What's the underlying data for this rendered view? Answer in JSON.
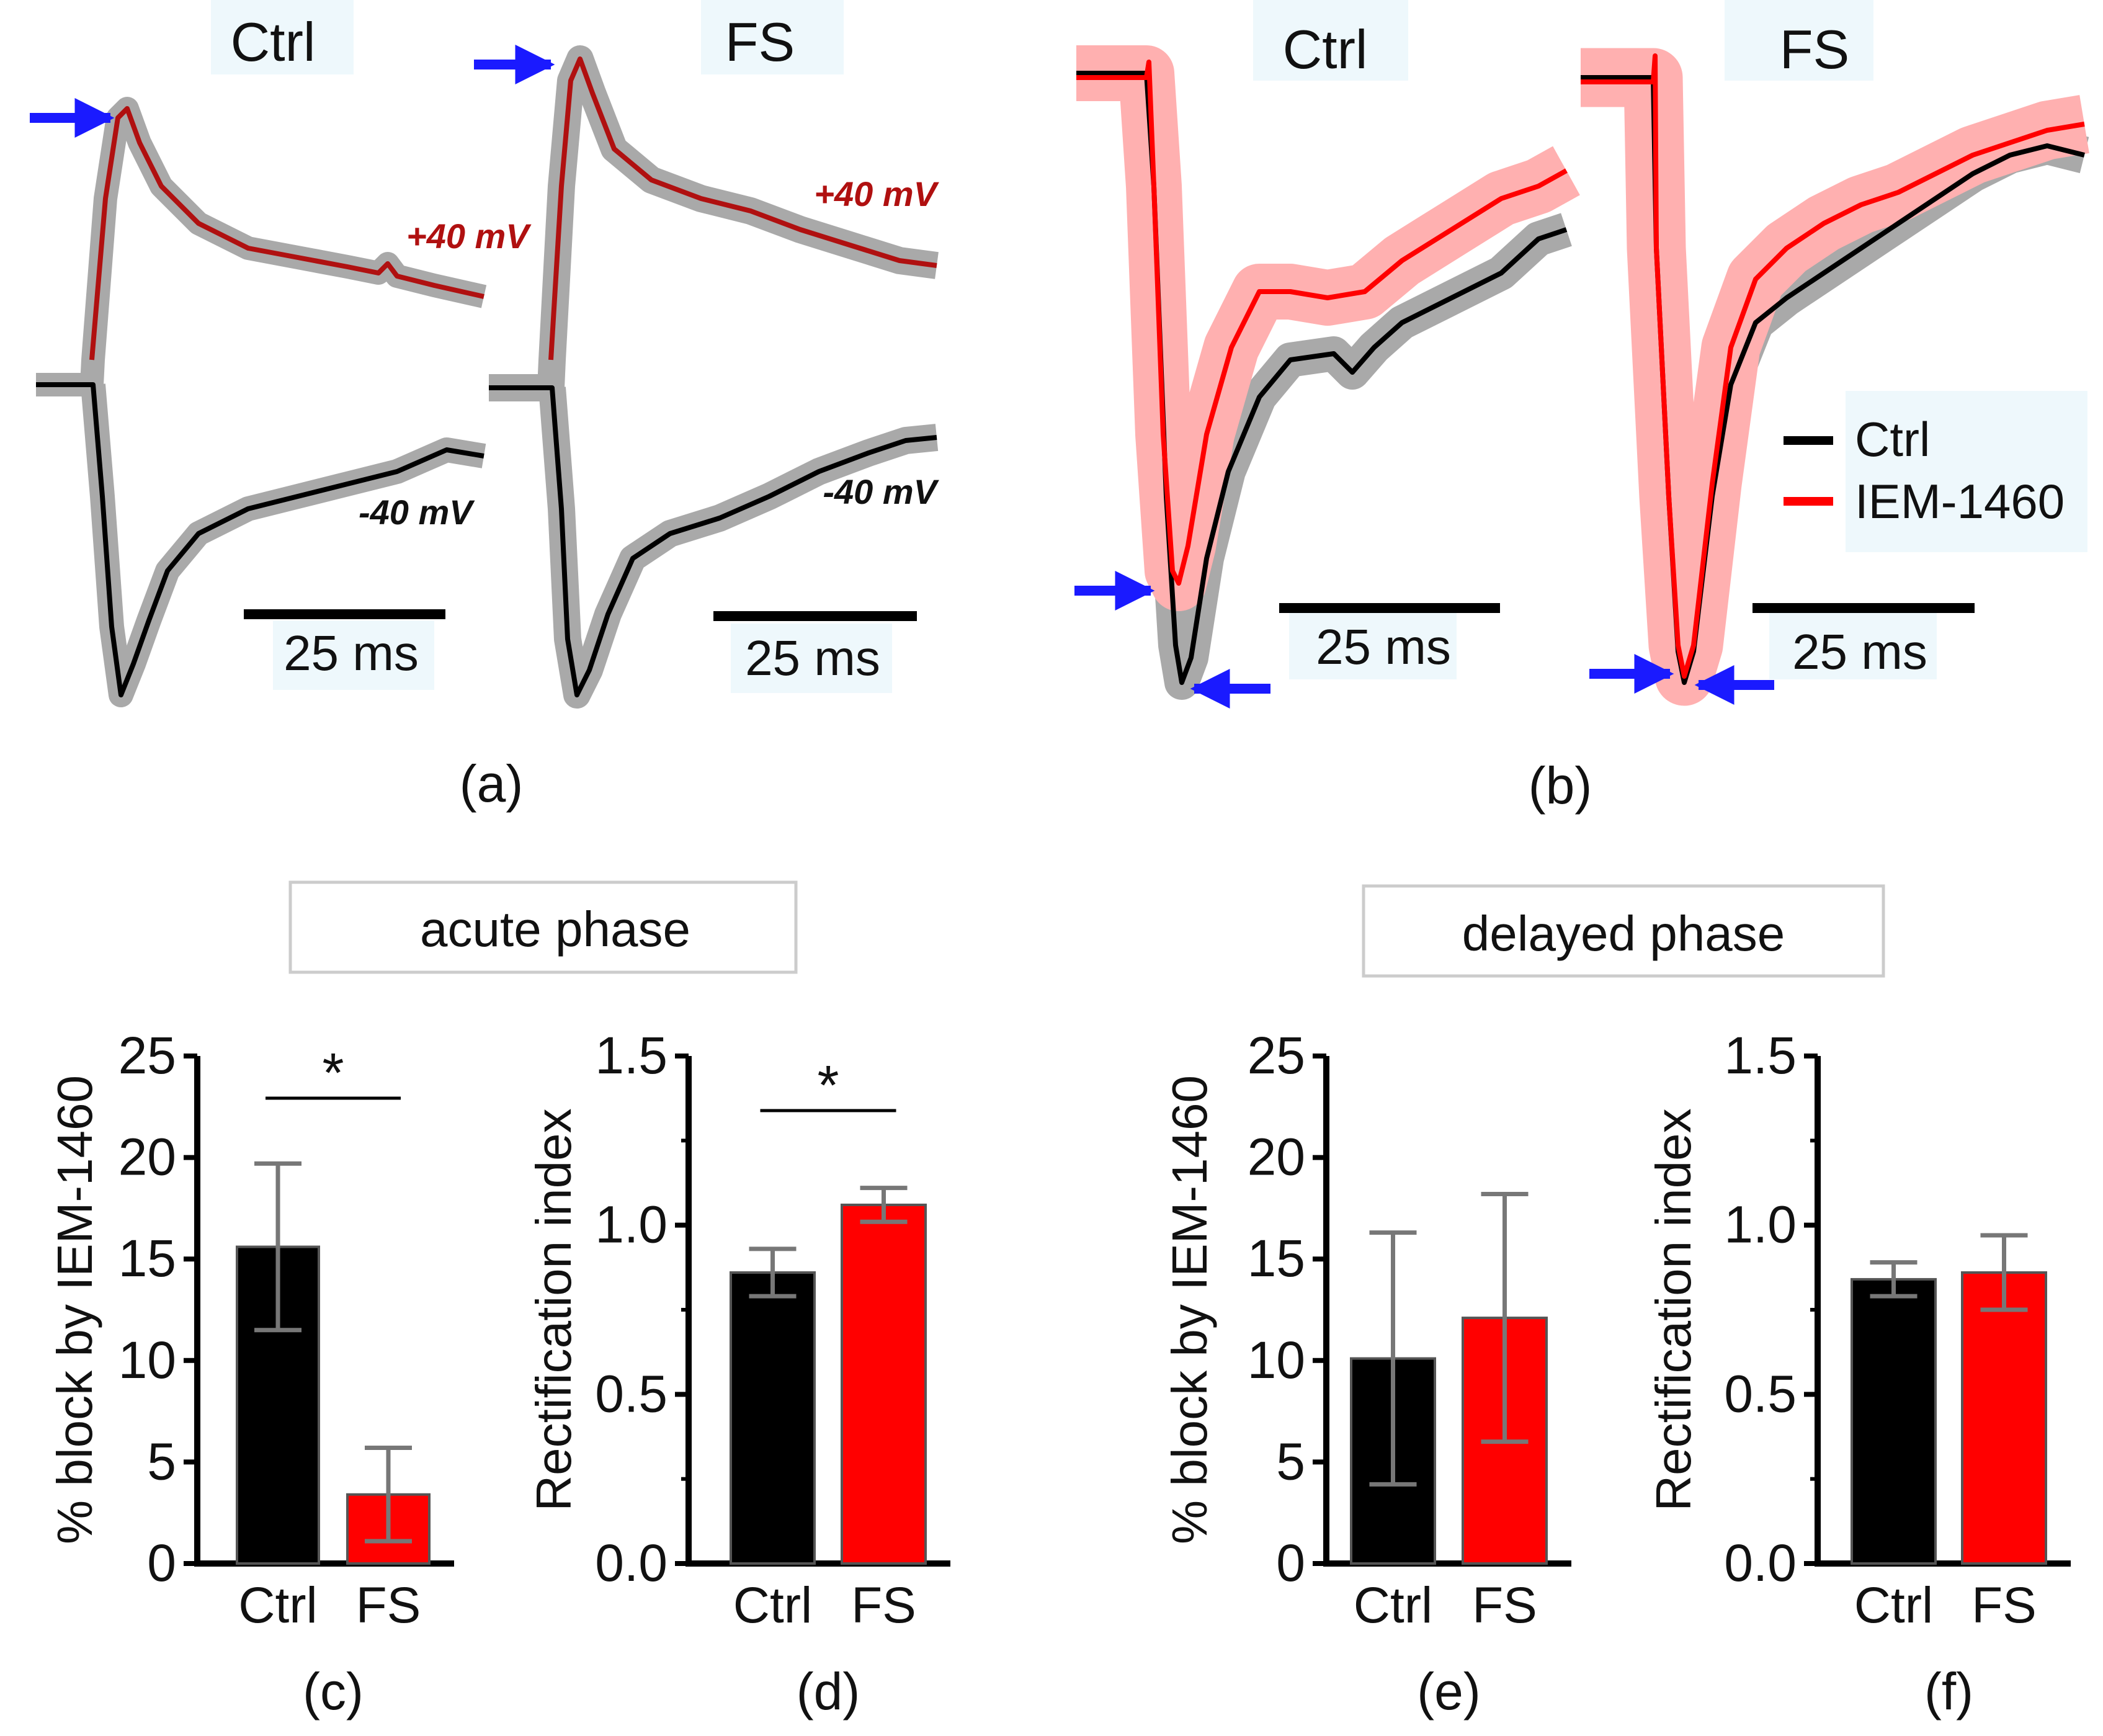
{
  "chart_data": [
    {
      "type": "line",
      "panel": "(a)",
      "titles": [
        "Ctrl",
        "FS"
      ],
      "annotations": [
        "+40 mV",
        "-40 mV"
      ],
      "scalebar": "25 ms",
      "series": [
        {
          "name": "+40 mV",
          "color": "#b01010"
        },
        {
          "name": "-40 mV",
          "color": "#000000"
        }
      ]
    },
    {
      "type": "line",
      "panel": "(b)",
      "titles": [
        "Ctrl",
        "FS"
      ],
      "scalebar": "25 ms",
      "legend": [
        "Ctrl",
        "IEM-1460"
      ],
      "series": [
        {
          "name": "Ctrl",
          "color": "#000000"
        },
        {
          "name": "IEM-1460",
          "color": "#ff0000"
        }
      ]
    },
    {
      "type": "bar",
      "panel": "(c)",
      "phase": "acute phase",
      "categories": [
        "Ctrl",
        "FS"
      ],
      "values": [
        15.6,
        3.4
      ],
      "errors": [
        4.1,
        2.3
      ],
      "ylabel": "% block by IEM-1460",
      "ylim": [
        0,
        25
      ],
      "yticks": [
        "0",
        "5",
        "10",
        "15",
        "20",
        "25"
      ],
      "significance": "*",
      "colors": [
        "#000000",
        "#ff0000"
      ]
    },
    {
      "type": "bar",
      "panel": "(d)",
      "phase": "acute phase",
      "categories": [
        "Ctrl",
        "FS"
      ],
      "values": [
        0.86,
        1.06
      ],
      "errors": [
        0.07,
        0.05
      ],
      "ylabel": "Rectification index",
      "ylim": [
        0,
        1.5
      ],
      "yticks": [
        "0.0",
        "0.5",
        "1.0",
        "1.5"
      ],
      "significance": "*",
      "colors": [
        "#000000",
        "#ff0000"
      ]
    },
    {
      "type": "bar",
      "panel": "(e)",
      "phase": "delayed phase",
      "categories": [
        "Ctrl",
        "FS"
      ],
      "values": [
        10.1,
        12.1
      ],
      "errors": [
        6.2,
        6.1
      ],
      "ylabel": "% block by IEM-1460",
      "ylim": [
        0,
        25
      ],
      "yticks": [
        "0",
        "5",
        "10",
        "15",
        "20",
        "25"
      ],
      "colors": [
        "#000000",
        "#ff0000"
      ]
    },
    {
      "type": "bar",
      "panel": "(f)",
      "phase": "delayed phase",
      "categories": [
        "Ctrl",
        "FS"
      ],
      "values": [
        0.84,
        0.86
      ],
      "errors": [
        0.05,
        0.11
      ],
      "ylabel": "Rectification index",
      "ylim": [
        0,
        1.5
      ],
      "yticks": [
        "0.0",
        "0.5",
        "1.0",
        "1.5"
      ],
      "colors": [
        "#000000",
        "#ff0000"
      ]
    }
  ],
  "phase_labels": {
    "acute": "acute phase",
    "delayed": "delayed phase"
  }
}
